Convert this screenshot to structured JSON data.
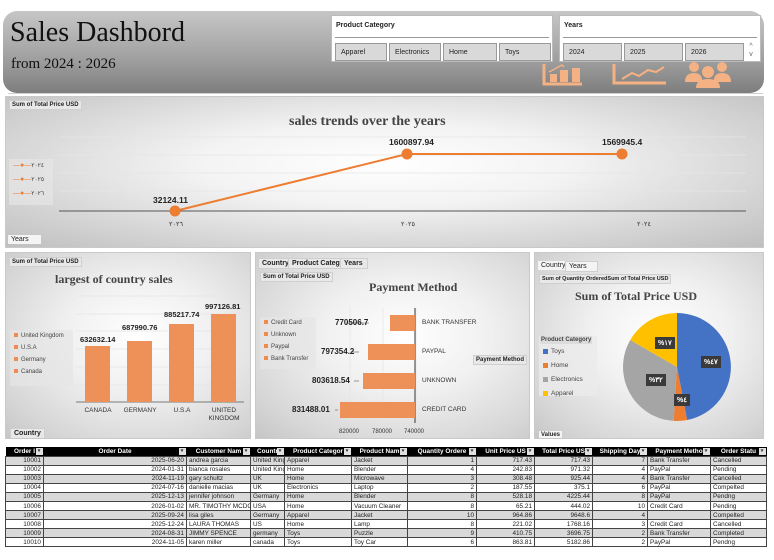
{
  "header": {
    "title": "Sales Dashbord",
    "subtitle": "from 2024 : 2026",
    "icons": [
      "bar-chart-icon",
      "line-chart-icon",
      "users-icon"
    ],
    "icon_color": "#f4b183"
  },
  "slicers": {
    "product_category": {
      "title": "Product Category",
      "items": [
        "Apparel",
        "Electronics",
        "Home",
        "Toys"
      ]
    },
    "years": {
      "title": "Years",
      "items": [
        "2024",
        "2025",
        "2026"
      ],
      "scroll_up": "^",
      "scroll_down": "v"
    }
  },
  "line_panel": {
    "value_tag": "Sum of Total Price USD",
    "axis_tag": "Years",
    "legend": [
      "٢٠٢٤",
      "٢٠٢٥",
      "٢٠٢٦"
    ]
  },
  "bar_panel": {
    "value_tag": "Sum of Total Price USD",
    "axis_tag": "Country",
    "legend": [
      "United Kingdom",
      "U.S.A",
      "Germany",
      "Canada"
    ]
  },
  "pay_panel": {
    "filter_tags": [
      "Country",
      "Product Category",
      "Years"
    ],
    "value_tag": "Sum of Total Price USD",
    "axis_tag": "Payment Method",
    "legend": [
      "Credit Card",
      "Unknown",
      "Paypal",
      "Bank Transfer"
    ]
  },
  "pie_panel": {
    "filter_tags": [
      "Country",
      "Years"
    ],
    "value_tag": "Sum of Quantity OrderedSum of Total Price USD",
    "legend_title": "Product Category",
    "values_tag": "Values"
  },
  "chart_data": [
    {
      "type": "line",
      "title": "sales  trends over the years",
      "categories": [
        "٢٠٢٦",
        "٢٠٢٥",
        "٢٠٢٤"
      ],
      "values": [
        32124.11,
        1600897.94,
        1569945.4
      ],
      "labels": [
        "32124.11",
        "1600897.94",
        "1569945.4"
      ],
      "xlabel": "Years",
      "ylabel": "Sum of Total Price USD",
      "color": "#ed7d31",
      "grid": true
    },
    {
      "type": "bar",
      "title": "largest of country sales",
      "categories": [
        "CANADA",
        "GERMANY",
        "U.S.A",
        "UNITED KINGDOM"
      ],
      "values": [
        632632.14,
        687990.76,
        885217.74,
        997126.81
      ],
      "labels": [
        "632632.14",
        "687990.76",
        "885217.74",
        "997126.81"
      ],
      "xlabel": "Country",
      "ylabel": "Sum of Total Price USD",
      "color": "#ed9159"
    },
    {
      "type": "bar",
      "orientation": "horizontal",
      "title": "Payment Method",
      "categories": [
        "BANK TRANSFER",
        "PAYPAL",
        "UNKNOWN",
        "CREDIT CARD"
      ],
      "values": [
        770506.7,
        797354.2,
        803618.54,
        831488.01
      ],
      "labels": [
        "770506.7",
        "797354.2",
        "803618.54",
        "831488.01"
      ],
      "x_ticks": [
        "820000",
        "780000",
        "740000"
      ],
      "xlim": [
        740000,
        840000
      ],
      "reversed_axis": true,
      "color": "#ed9159"
    },
    {
      "type": "pie",
      "title": "Sum of Total Price USD",
      "categories": [
        "Toys",
        "Home",
        "Electronics",
        "Apparel"
      ],
      "values": [
        47,
        4,
        32,
        17
      ],
      "labels": [
        "%٤٧",
        "%٤",
        "%٣٢",
        "%١٧"
      ],
      "colors": [
        "#4472c4",
        "#ed7d31",
        "#a5a5a5",
        "#ffc000"
      ],
      "legend_position": "left"
    }
  ],
  "table": {
    "columns": [
      "Order I",
      "Order Date",
      "Customer Nam",
      "Countr",
      "Product Categor",
      "Product Nam",
      "Quantity Ordere",
      "Unit Price US",
      "Total Price US",
      "Shipping Day",
      "Payment Metho",
      "Order Statu"
    ],
    "rows": [
      [
        "10001",
        "2025-06-20",
        "andrea garcia",
        "United King",
        "Apparel",
        "Jacket",
        "1",
        "717.43",
        "717.43",
        "7",
        "Bank Transfer",
        "Cancelled"
      ],
      [
        "10002",
        "2024-01-31",
        "bianca rosales",
        "United King",
        "Home",
        "Blender",
        "4",
        "242.83",
        "971.32",
        "4",
        "PayPal",
        "Pending"
      ],
      [
        "10003",
        "2024-11-19",
        "gary schultz",
        "UK",
        "Home",
        "Microwave",
        "3",
        "308.48",
        "925.44",
        "4",
        "Bank Transfer",
        "Cancelled"
      ],
      [
        "10004",
        "2024-07-16",
        "danielle macias",
        "UK",
        "Electronics",
        "Laptop",
        "2",
        "187.55",
        "375.1",
        "6",
        "PayPal",
        "Compelted"
      ],
      [
        "10005",
        "2025-12-13",
        "jennifer johnson",
        "Germany",
        "Home",
        "Blender",
        "8",
        "528.18",
        "4225.44",
        "8",
        "PayPal",
        "Pendng"
      ],
      [
        "10006",
        "2026-01-02",
        "MR. TIMOTHY MCDO",
        "USA",
        "Home",
        "Vacuum Cleaner",
        "8",
        "65.21",
        "444.02",
        "10",
        "Credit Card",
        "Pending"
      ],
      [
        "10007",
        "2025-09-24",
        "lisa giles",
        "Germany",
        "Apparel",
        "Jacket",
        "10",
        "964.86",
        "9648.6",
        "4",
        "",
        "Compelted"
      ],
      [
        "10008",
        "2025-12-24",
        "LAURA THOMAS",
        "US",
        "Home",
        "Lamp",
        "8",
        "221.02",
        "1768.16",
        "3",
        "Credit Card",
        "Cancelled"
      ],
      [
        "10009",
        "2024-08-31",
        "JIMMY SPENCE",
        "germany",
        "Toys",
        "Puzzle",
        "9",
        "410.75",
        "3696.75",
        "2",
        "Bank Transfer",
        "Completed"
      ],
      [
        "10010",
        "2024-11-05",
        "karen miller",
        "canada",
        "Toys",
        "Toy Car",
        "6",
        "863.81",
        "5182.86",
        "2",
        "PayPal",
        "Pendng"
      ]
    ]
  }
}
